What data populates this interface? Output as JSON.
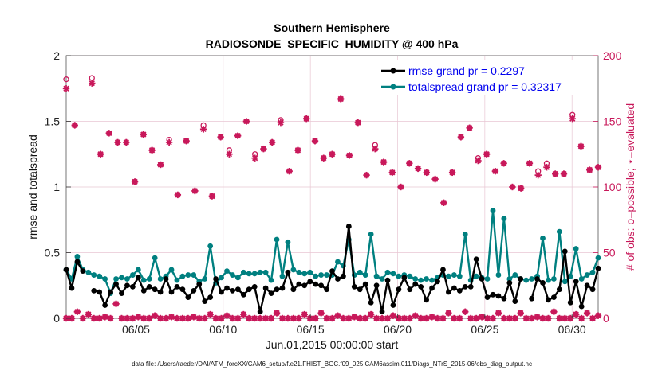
{
  "chart_data": {
    "type": "line",
    "title": "Southern Hemisphere",
    "subtitle": "RADIOSONDE_SPECIFIC_HUMIDITY @ 400 hPa",
    "xlabel": "Jun.01,2015 00:00:00 start",
    "ylabel": "rmse and totalspread",
    "ylabel_right": "# of obs: o=possible; ⋆=evaluated",
    "xlim": [
      1,
      31.5
    ],
    "ylim": [
      0,
      2
    ],
    "ylim_right": [
      0,
      200
    ],
    "x_ticks": [
      5,
      10,
      15,
      20,
      25,
      30
    ],
    "x_tick_labels": [
      "06/05",
      "06/10",
      "06/15",
      "06/20",
      "06/25",
      "06/30"
    ],
    "y_ticks": [
      0,
      0.5,
      1,
      1.5,
      2
    ],
    "y_tick_labels": [
      "0",
      "0.5",
      "1",
      "1.5",
      "2"
    ],
    "y_ticks_right": [
      0,
      50,
      100,
      150,
      200
    ],
    "y_tick_labels_right": [
      "0",
      "50",
      "100",
      "150",
      "200"
    ],
    "grid": true,
    "legend_position": "top-right",
    "footnote": "data file: /Users/raeder/DAI/ATM_forcXX/CAM6_setup/f.e21.FHIST_BGC.f09_025.CAM6assim.011/Diags_NTrS_2015-06/obs_diag_output.nc",
    "colors": {
      "rmse": "#000000",
      "spread": "#008080",
      "obs": "#c8185a"
    },
    "series": [
      {
        "name": "rmse grand pr = 0.2297",
        "values": [
          0.37,
          0.23,
          0.43,
          0.36,
          null,
          0.21,
          0.2,
          0.1,
          0.2,
          0.26,
          0.19,
          0.25,
          0.24,
          0.31,
          0.21,
          0.24,
          0.22,
          0.2,
          0.3,
          0.2,
          0.24,
          0.22,
          0.16,
          0.21,
          0.26,
          0.13,
          0.16,
          0.3,
          0.2,
          0.23,
          0.21,
          0.22,
          0.18,
          0.22,
          0.24,
          0.05,
          0.23,
          0.19,
          0.22,
          0.23,
          0.35,
          0.22,
          0.26,
          0.25,
          0.28,
          0.26,
          0.25,
          0.22,
          0.36,
          0.3,
          0.32,
          0.7,
          0.24,
          0.22,
          0.26,
          0.12,
          0.25,
          0.05,
          0.29,
          0.1,
          0.22,
          0.31,
          0.22,
          0.26,
          0.24,
          0.14,
          0.23,
          0.28,
          0.37,
          0.2,
          0.23,
          0.21,
          0.24,
          0.24,
          0.45,
          0.3,
          0.16,
          0.18,
          0.17,
          0.15,
          0.27,
          0.13,
          0.3,
          null,
          0.15,
          0.3,
          0.27,
          0.14,
          0.16,
          0.22,
          0.51,
          0.12,
          0.28,
          0.09,
          0.25,
          0.22,
          0.38
        ]
      },
      {
        "name": "totalspread grand pr = 0.32317",
        "values": [
          0.37,
          0.3,
          0.47,
          0.37,
          0.35,
          0.33,
          0.32,
          0.3,
          0.19,
          0.3,
          0.31,
          0.3,
          0.33,
          0.37,
          0.29,
          0.3,
          0.46,
          0.3,
          0.32,
          0.37,
          0.29,
          0.32,
          0.33,
          0.33,
          0.28,
          0.3,
          0.55,
          0.27,
          0.31,
          0.36,
          0.33,
          0.31,
          0.35,
          0.34,
          0.34,
          0.35,
          0.35,
          0.29,
          0.6,
          0.32,
          0.58,
          0.37,
          0.35,
          0.34,
          0.35,
          0.32,
          0.33,
          0.33,
          0.33,
          0.43,
          0.4,
          0.6,
          0.33,
          0.35,
          0.33,
          0.64,
          0.32,
          0.3,
          0.35,
          0.34,
          0.32,
          0.33,
          0.32,
          0.3,
          0.29,
          0.3,
          0.29,
          0.31,
          0.33,
          0.32,
          0.33,
          0.32,
          0.64,
          0.29,
          0.32,
          0.31,
          0.3,
          0.82,
          0.33,
          0.76,
          0.3,
          0.33,
          0.3,
          0.29,
          0.3,
          0.32,
          0.61,
          0.29,
          0.3,
          0.66,
          0.28,
          0.32,
          0.53,
          0.3,
          0.33,
          0.35,
          0.46
        ]
      }
    ],
    "obs_possible": [
      182,
      147,
      null,
      183,
      125,
      141,
      134,
      134,
      104,
      140,
      128,
      117,
      136,
      94,
      135,
      97,
      147,
      93,
      138,
      128,
      139,
      150,
      125,
      129,
      134,
      151,
      112,
      128,
      152,
      135,
      122,
      125,
      167,
      124,
      149,
      109,
      132,
      119,
      111,
      100,
      118,
      114,
      111,
      106,
      88,
      111,
      138,
      145,
      122,
      125,
      112,
      118,
      100,
      99,
      118,
      112,
      118,
      110,
      110,
      155,
      131,
      113,
      115
    ],
    "obs_evaluated": [
      175,
      147,
      null,
      179,
      125,
      141,
      134,
      134,
      104,
      140,
      128,
      117,
      134,
      94,
      135,
      97,
      144,
      93,
      138,
      125,
      139,
      150,
      122,
      129,
      134,
      149,
      112,
      128,
      152,
      135,
      122,
      125,
      167,
      124,
      149,
      109,
      129,
      119,
      111,
      100,
      118,
      114,
      111,
      106,
      88,
      111,
      138,
      145,
      120,
      125,
      112,
      118,
      100,
      99,
      118,
      109,
      115,
      110,
      110,
      152,
      131,
      113,
      115
    ],
    "obs_small": [
      0,
      0,
      5,
      0,
      3,
      0,
      0,
      1,
      0,
      11,
      0,
      0,
      0,
      1,
      0,
      0,
      2,
      0,
      0,
      1,
      0,
      0,
      0,
      1,
      0,
      0,
      3,
      0,
      0,
      2,
      0,
      0,
      3,
      0,
      0,
      0,
      0,
      0,
      4,
      0,
      0,
      0,
      0,
      3,
      0,
      0,
      4,
      0,
      0,
      2,
      0,
      0,
      1,
      0,
      0,
      3,
      0,
      0,
      0,
      2,
      0,
      0,
      0,
      2,
      0,
      0,
      1,
      0,
      0,
      4,
      0,
      0,
      5,
      0,
      0,
      1,
      0,
      0,
      4,
      0,
      0,
      0,
      4,
      0,
      0,
      1,
      0,
      0,
      5,
      0,
      0,
      0,
      3,
      0,
      4,
      0,
      2
    ]
  },
  "legend": {
    "rmse_label": "rmse grand pr = 0.2297",
    "spread_label": "totalspread grand pr = 0.32317"
  }
}
